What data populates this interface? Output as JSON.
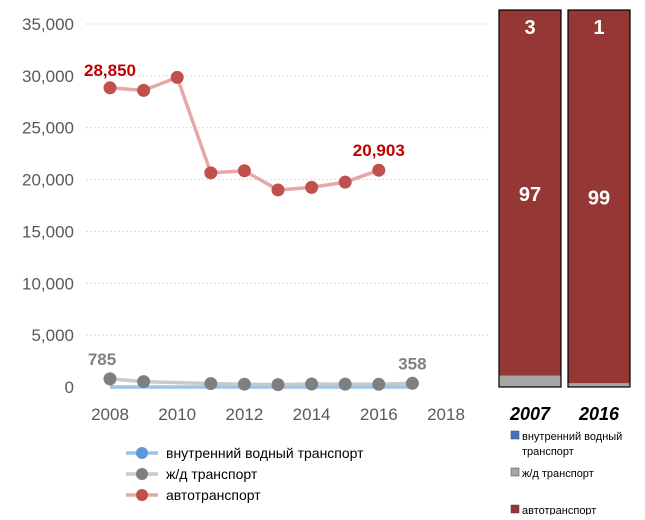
{
  "chart_data": [
    {
      "type": "line",
      "title": "",
      "xlabel": "",
      "ylabel": "",
      "xlim": [
        2008,
        2018
      ],
      "ylim": [
        0,
        35000
      ],
      "x_ticks": [
        2008,
        2010,
        2012,
        2014,
        2016,
        2018
      ],
      "x_tick_labels": [
        "2008",
        "2010",
        "2012",
        "2014",
        "2016",
        "2018"
      ],
      "y_ticks": [
        0,
        5000,
        10000,
        15000,
        20000,
        25000,
        30000,
        35000
      ],
      "y_tick_labels": [
        "0",
        "5,000",
        "10,000",
        "15,000",
        "20,000",
        "25,000",
        "30,000",
        "35,000"
      ],
      "grid": true,
      "legend_position": "bottom",
      "series": [
        {
          "name": "внутренний водный транспорт",
          "color": "#5b9bd5",
          "line_color": "#9dc3e6",
          "x": [
            2008,
            2009,
            2011,
            2012,
            2013,
            2014,
            2015,
            2016,
            2017
          ],
          "y": [
            0,
            0,
            0,
            0,
            0,
            0,
            0,
            0,
            0
          ],
          "show_markers": false
        },
        {
          "name": "ж/д транспорт",
          "color": "#7f7f7f",
          "line_color": "#c9c9c9",
          "x": [
            2008,
            2009,
            2011,
            2012,
            2013,
            2014,
            2015,
            2016,
            2017
          ],
          "y": [
            785,
            520,
            330,
            270,
            230,
            290,
            280,
            260,
            358
          ],
          "show_markers": true
        },
        {
          "name": "автотранспорт",
          "color": "#c0504d",
          "line_color": "#e6a8a6",
          "x": [
            2008,
            2009,
            2010,
            2011,
            2012,
            2013,
            2014,
            2015,
            2016
          ],
          "y": [
            28850,
            28600,
            29850,
            20650,
            20850,
            19000,
            19250,
            19750,
            20903
          ],
          "show_markers": true
        }
      ],
      "annotations": [
        {
          "text": "28,850",
          "x": 2008,
          "y": 28850,
          "color": "#c00000",
          "anchor": "left-above"
        },
        {
          "text": "20,903",
          "x": 2016,
          "y": 20903,
          "color": "#c00000",
          "anchor": "above"
        },
        {
          "text": "785",
          "x": 2008,
          "y": 785,
          "color": "#808080",
          "anchor": "above"
        },
        {
          "text": "358",
          "x": 2017,
          "y": 358,
          "color": "#808080",
          "anchor": "left-above"
        }
      ]
    },
    {
      "type": "bar",
      "stacked": true,
      "percent": true,
      "title": "",
      "categories": [
        "2007",
        "2016"
      ],
      "ylim": [
        0,
        100
      ],
      "legend_position": "bottom",
      "series": [
        {
          "name": "внутренний водный транспорт",
          "color": "#4472c4",
          "values": [
            0,
            0
          ]
        },
        {
          "name": "ж/д транспорт",
          "color": "#a6a6a6",
          "values": [
            3,
            1
          ]
        },
        {
          "name": "автотранспорт",
          "color": "#953735",
          "values": [
            97,
            99
          ]
        }
      ],
      "data_labels": [
        {
          "category": "2007",
          "series": "ж/д транспорт",
          "text": "3"
        },
        {
          "category": "2016",
          "series": "ж/д транспорт",
          "text": "1"
        },
        {
          "category": "2007",
          "series": "автотранспорт",
          "text": "97"
        },
        {
          "category": "2016",
          "series": "автотранспорт",
          "text": "99"
        }
      ],
      "legend_labels": [
        [
          "внутренний водный",
          "транспорт"
        ],
        [
          "ж/д транспорт"
        ],
        [
          "автотранспорт"
        ]
      ]
    }
  ]
}
